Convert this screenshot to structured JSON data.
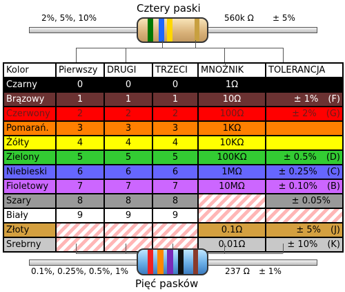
{
  "top": {
    "title": "Cztery paski",
    "left_label": "2%, 5%, 10%",
    "right_value": "560k Ω",
    "right_tol": "± 5%",
    "bands": [
      "#007700",
      "#1e66ff",
      "#ffd700",
      "#c8a040"
    ]
  },
  "bottom": {
    "title": "Pięć pasków",
    "left_label": "0.1%, 0.25%, 0.5%, 1%",
    "right_value": "237 Ω",
    "right_tol": "± 1%",
    "bands": [
      "#ee2222",
      "#ff8800",
      "#7a2ab8",
      "#111111",
      "#8a3a2a"
    ]
  },
  "table": {
    "headers": [
      "Kolor",
      "Pierwszy",
      "DRUGI",
      "TRZECI",
      "MNOŻNIK",
      "TOLERANCJA"
    ],
    "rows": [
      {
        "name": "Czarny",
        "d1": "0",
        "d2": "0",
        "d3": "0",
        "mult": "1Ω",
        "tol": "",
        "code": "",
        "bg": "#000000",
        "fg": "#ffffff",
        "tolbg": "#000000"
      },
      {
        "name": "Brązowy",
        "d1": "1",
        "d2": "1",
        "d3": "1",
        "mult": "10Ω",
        "tol": "± 1%",
        "code": "(F)",
        "bg": "#6b3232",
        "fg": "#ffffff",
        "tolbg": "#6b3232"
      },
      {
        "name": "Czerwony",
        "d1": "2",
        "d2": "2",
        "d3": "2",
        "mult": "100Ω",
        "tol": "± 2%",
        "code": "(G)",
        "bg": "#ff0000",
        "fg": "#6b1a1a",
        "tolbg": "#ff0000"
      },
      {
        "name": "Pomarań.",
        "d1": "3",
        "d2": "3",
        "d3": "3",
        "mult": "1KΩ",
        "tol": "",
        "code": "",
        "bg": "#ff8000",
        "fg": "#000000",
        "tolbg": "#ff8000"
      },
      {
        "name": "Żółty",
        "d1": "4",
        "d2": "4",
        "d3": "4",
        "mult": "10KΩ",
        "tol": "",
        "code": "",
        "bg": "#ffff00",
        "fg": "#000000",
        "tolbg": "#ffff00"
      },
      {
        "name": "Zielony",
        "d1": "5",
        "d2": "5",
        "d3": "5",
        "mult": "100KΩ",
        "tol": "± 0.5%",
        "code": "(D)",
        "bg": "#33cc33",
        "fg": "#000000",
        "tolbg": "#33cc33"
      },
      {
        "name": "Niebieski",
        "d1": "6",
        "d2": "6",
        "d3": "6",
        "mult": "1MΩ",
        "tol": "± 0.25%",
        "code": "(C)",
        "bg": "#6666ff",
        "fg": "#000000",
        "tolbg": "#6666ff"
      },
      {
        "name": "Fioletowy",
        "d1": "7",
        "d2": "7",
        "d3": "7",
        "mult": "10MΩ",
        "tol": "± 0.10%",
        "code": "(B)",
        "bg": "#cc66ff",
        "fg": "#000000",
        "tolbg": "#cc66ff"
      },
      {
        "name": "Szary",
        "d1": "8",
        "d2": "8",
        "d3": "8",
        "mult": "",
        "tol": "± 0.05%",
        "code": "",
        "bg": "#999999",
        "fg": "#000000",
        "tolbg": "#999999"
      },
      {
        "name": "Biały",
        "d1": "9",
        "d2": "9",
        "d3": "9",
        "mult": "",
        "tol": "",
        "code": "",
        "bg": "#ffffff",
        "fg": "#000000",
        "tolbg": "#ffffff"
      },
      {
        "name": "Złoty",
        "d1": "",
        "d2": "",
        "d3": "",
        "mult": "0.1Ω",
        "tol": "± 5%",
        "code": "(J)",
        "bg": "#d4a040",
        "fg": "#000000",
        "tolbg": "#d4a040"
      },
      {
        "name": "Srebrny",
        "d1": "",
        "d2": "",
        "d3": "",
        "mult": "0.01Ω",
        "tol": "± 10%",
        "code": "(K)",
        "bg": "#c8c8c8",
        "fg": "#000000",
        "tolbg": "#c8c8c8"
      }
    ]
  }
}
